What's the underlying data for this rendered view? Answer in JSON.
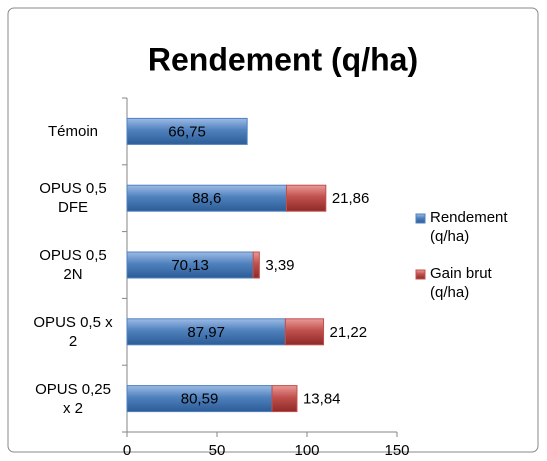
{
  "chart_data": {
    "type": "stacked-barh",
    "title": "Rendement (q/ha)",
    "categories": [
      "Témoin",
      "OPUS 0,5 DFE",
      "OPUS 0,5 2N",
      "OPUS 0,5 x 2",
      "OPUS 0,25 x 2"
    ],
    "series": [
      {
        "name": "Rendement (q/ha)",
        "color": "#4f81bd",
        "values": [
          66.75,
          88.6,
          70.13,
          87.97,
          80.59
        ],
        "value_labels": [
          "66,75",
          "88,6",
          "70,13",
          "87,97",
          "80,59"
        ]
      },
      {
        "name": "Gain brut (q/ha)",
        "color": "#c0504d",
        "values": [
          null,
          21.86,
          3.39,
          21.22,
          13.84
        ],
        "value_labels": [
          null,
          "21,86",
          "3,39",
          "21,22",
          "13,84"
        ]
      }
    ],
    "xlim": [
      0,
      150
    ],
    "xticks": [
      0,
      50,
      100,
      150
    ],
    "grid": false,
    "legend": "right"
  }
}
